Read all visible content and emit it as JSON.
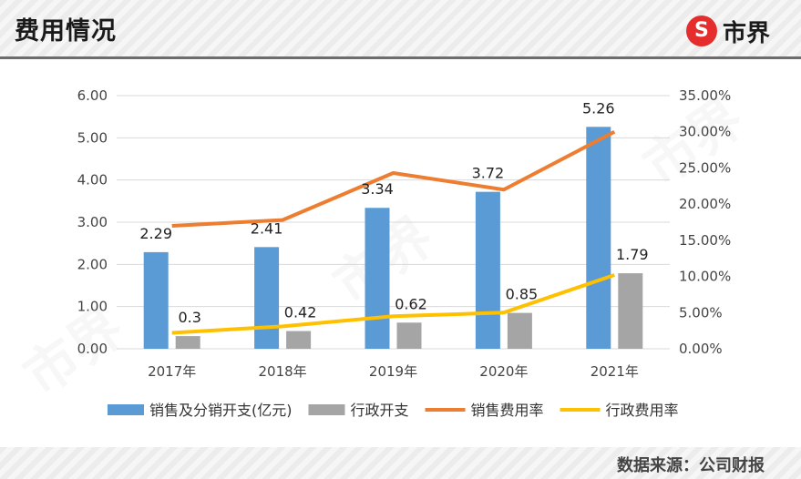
{
  "header": {
    "title": "费用情况",
    "logo_mark": "S",
    "logo_text": "市界"
  },
  "footer": {
    "source": "数据来源：公司财报"
  },
  "watermark_text": "市界",
  "colors": {
    "sales_bar": "#5b9bd5",
    "admin_bar": "#a5a5a5",
    "sales_rate_line": "#ed7d31",
    "admin_rate_line": "#ffc000",
    "gridline": "#d9d9d9"
  },
  "chart_data": {
    "type": "bar+line",
    "categories": [
      "2017年",
      "2018年",
      "2019年",
      "2020年",
      "2021年"
    ],
    "series": [
      {
        "name": "销售及分销开支(亿元)",
        "kind": "bar",
        "axis": "left",
        "values": [
          2.29,
          2.41,
          3.34,
          3.72,
          5.26
        ],
        "labels": [
          "2.29",
          "2.41",
          "3.34",
          "3.72",
          "5.26"
        ]
      },
      {
        "name": "行政开支",
        "kind": "bar",
        "axis": "left",
        "values": [
          0.3,
          0.42,
          0.62,
          0.85,
          1.79
        ],
        "labels": [
          "0.3",
          "0.42",
          "0.62",
          "0.85",
          "1.79"
        ]
      },
      {
        "name": "销售费用率",
        "kind": "line",
        "axis": "right",
        "values": [
          17.0,
          17.8,
          24.3,
          22.0,
          30.0
        ]
      },
      {
        "name": "行政费用率",
        "kind": "line",
        "axis": "right",
        "values": [
          2.2,
          3.1,
          4.5,
          5.0,
          10.2
        ]
      }
    ],
    "y_left": {
      "min": 0,
      "max": 6,
      "ticks": [
        "0.00",
        "1.00",
        "2.00",
        "3.00",
        "4.00",
        "5.00",
        "6.00"
      ]
    },
    "y_right": {
      "min": 0,
      "max": 35,
      "ticks": [
        "0.00%",
        "5.00%",
        "10.00%",
        "15.00%",
        "20.00%",
        "25.00%",
        "30.00%",
        "35.00%"
      ]
    },
    "gridlines": true,
    "legend_position": "bottom"
  }
}
